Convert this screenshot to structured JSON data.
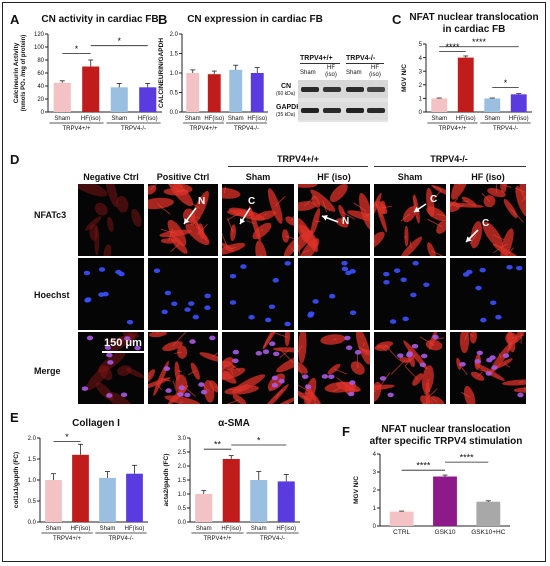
{
  "panels": {
    "A": {
      "label": "A",
      "title": "CN activity in cardiac FB",
      "ylabel": "Calcineurin Activity",
      "ylabel2": "(nmols PO₄ /mg of protein)",
      "groups": [
        "TRPV4+/+",
        "TRPV4-/-"
      ],
      "sig": [
        "*",
        "*"
      ]
    },
    "B": {
      "label": "B",
      "title": "CN expression in cardiac FB",
      "ylabel": "CALCINEURIN/GAPDH",
      "groups": [
        "TRPV4+/+",
        "TRPV4-/-"
      ],
      "blot_header": [
        "TRPV4+/+",
        "TRPV4-/-"
      ],
      "blot_lanes": [
        "Sham",
        "HF\n(iso)",
        "Sham",
        "HF\n(iso)"
      ],
      "blot_rows": [
        {
          "name": "CN",
          "sub": "(60 kDa)"
        },
        {
          "name": "GAPDH",
          "sub": "(35 kDa)"
        }
      ]
    },
    "C": {
      "label": "C",
      "title_line1": "NFAT nuclear translocation",
      "title_line2": "in cardiac FB",
      "ylabel": "MGV N/C",
      "groups": [
        "TRPV4+/+",
        "TRPV4-/-"
      ],
      "sig": [
        "****",
        "****",
        "*"
      ]
    },
    "D": {
      "label": "D",
      "column_labels": [
        "Negative Ctrl",
        "Positive Ctrl",
        "Sham",
        "HF (iso)",
        "Sham",
        "HF (iso)"
      ],
      "group_labels": [
        "TRPV4+/+",
        "TRPV4-/-"
      ],
      "row_labels": [
        "NFATc3",
        "Hoechst",
        "Merge"
      ],
      "scale_bar": "150 μm",
      "arrows": [
        "N",
        "C",
        "N",
        "C",
        "C"
      ]
    },
    "E": {
      "label": "E",
      "left_title": "Collagen I",
      "right_title": "α-SMA",
      "left_ylabel": "col1a1/gapdh (FC)",
      "right_ylabel": "acta2/gapdh (FC)",
      "groups": [
        "TRPV4+/+",
        "TRPV4-/-"
      ],
      "left_sig": [
        "*"
      ],
      "right_sig": [
        "**",
        "*"
      ]
    },
    "F": {
      "label": "F",
      "title_line1": "NFAT nuclear translocation",
      "title_line2": "after specific  TRPV4 stimulation",
      "ylabel": "MGV N/C",
      "sig": [
        "****",
        "****"
      ]
    }
  },
  "chart_data": [
    {
      "type": "bar",
      "panel": "A",
      "categories": [
        "Sham",
        "HF(iso)",
        "Sham",
        "HF(iso)"
      ],
      "values": [
        45,
        70,
        38,
        38
      ],
      "errors": [
        3,
        10,
        6,
        6
      ],
      "colors": [
        "#f2c2c4",
        "#c11c1c",
        "#9bbfe0",
        "#5a3be0"
      ],
      "ylim": [
        0,
        120
      ],
      "yticks": [
        0,
        20,
        40,
        60,
        80,
        100,
        120
      ]
    },
    {
      "type": "bar",
      "panel": "B",
      "categories": [
        "Sham",
        "HF(iso)",
        "Sham",
        "HF(iso)"
      ],
      "values": [
        1.0,
        0.97,
        1.08,
        1.0
      ],
      "errors": [
        0.08,
        0.08,
        0.12,
        0.14
      ],
      "colors": [
        "#f2c2c4",
        "#c11c1c",
        "#9bbfe0",
        "#5a3be0"
      ],
      "ylim": [
        0,
        2.0
      ],
      "yticks": [
        0.0,
        0.5,
        1.0,
        1.5,
        2.0
      ],
      "ytick_labels": [
        "0.0",
        "0.5",
        "1.0",
        "1.5",
        "2.0"
      ]
    },
    {
      "type": "bar",
      "panel": "C",
      "categories": [
        "Sham",
        "HF(iso)",
        "Sham",
        "HF(iso)"
      ],
      "values": [
        1.0,
        4.0,
        1.0,
        1.3
      ],
      "errors": [
        0.03,
        0.12,
        0.03,
        0.05
      ],
      "colors": [
        "#f2c2c4",
        "#c11c1c",
        "#9bbfe0",
        "#5a3be0"
      ],
      "ylim": [
        0,
        5
      ],
      "yticks": [
        0,
        1,
        2,
        3,
        4,
        5
      ]
    },
    {
      "type": "bar",
      "panel": "E-left",
      "categories": [
        "Sham",
        "HF(iso)",
        "Sham",
        "HF(iso)"
      ],
      "values": [
        1.0,
        1.6,
        1.05,
        1.15
      ],
      "errors": [
        0.15,
        0.25,
        0.15,
        0.2
      ],
      "colors": [
        "#f2c2c4",
        "#c11c1c",
        "#9bbfe0",
        "#5a3be0"
      ],
      "ylim": [
        0,
        2.0
      ],
      "yticks": [
        0.0,
        0.5,
        1.0,
        1.5,
        2.0
      ],
      "ytick_labels": [
        "0.0",
        "0.5",
        "1.0",
        "1.5",
        "2.0"
      ]
    },
    {
      "type": "bar",
      "panel": "E-right",
      "categories": [
        "Sham",
        "HF(iso)",
        "Sham",
        "HF(iso)"
      ],
      "values": [
        1.0,
        2.25,
        1.5,
        1.45
      ],
      "errors": [
        0.12,
        0.12,
        0.3,
        0.25
      ],
      "colors": [
        "#f2c2c4",
        "#c11c1c",
        "#9bbfe0",
        "#5a3be0"
      ],
      "ylim": [
        0,
        3.0
      ],
      "yticks": [
        0.0,
        0.5,
        1.0,
        1.5,
        2.0,
        2.5,
        3.0
      ],
      "ytick_labels": [
        "0.0",
        "0.5",
        "1.0",
        "1.5",
        "2.0",
        "2.5",
        "3.0"
      ]
    },
    {
      "type": "bar",
      "panel": "F",
      "categories": [
        "CTRL",
        "GSK10",
        "GSK10+HC"
      ],
      "values": [
        0.8,
        2.75,
        1.35
      ],
      "errors": [
        0.03,
        0.08,
        0.05
      ],
      "colors": [
        "#f2c2c4",
        "#8e1a8a",
        "#a8a8a8"
      ],
      "ylim": [
        0,
        4
      ],
      "yticks": [
        0,
        1,
        2,
        3,
        4
      ]
    }
  ]
}
